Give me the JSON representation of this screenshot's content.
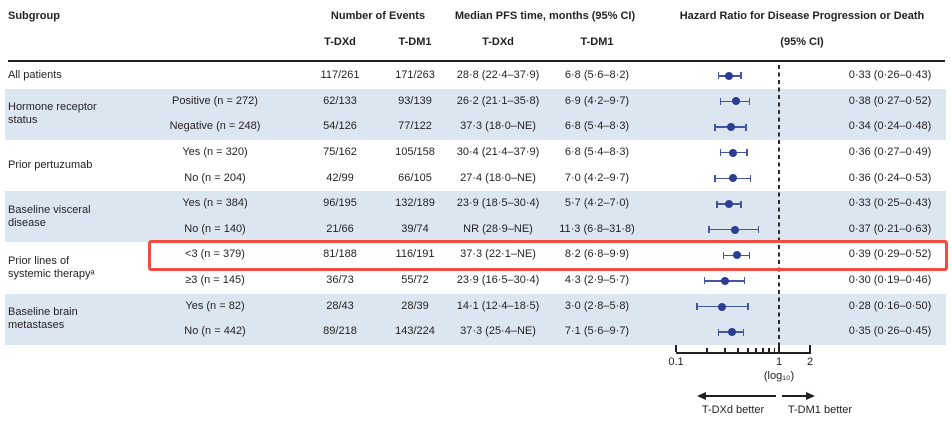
{
  "colors": {
    "band_blue": "#dce6f1",
    "marker_navy": "#2b3e92",
    "whisker_blue": "#44569f",
    "highlight_red": "#f24c42",
    "text": "#231f20"
  },
  "header": {
    "col_subgroup": "Subgroup",
    "col_events": "Number of Events",
    "col_median": "Median PFS time, months (95% CI)",
    "col_hr_line1": "Hazard Ratio for Disease Progression or Death",
    "col_hr_line2": "(95% CI)",
    "sub_tdxd": "T-DXd",
    "sub_tdm1": "T-DM1"
  },
  "groups": [
    {
      "label_lines": [
        "All patients"
      ],
      "row_start": 0,
      "row_count": 1,
      "shaded": false
    },
    {
      "label_lines": [
        "Hormone receptor",
        "status"
      ],
      "row_start": 1,
      "row_count": 2,
      "shaded": true
    },
    {
      "label_lines": [
        "Prior pertuzumab"
      ],
      "row_start": 3,
      "row_count": 2,
      "shaded": false
    },
    {
      "label_lines": [
        "Baseline visceral",
        "disease"
      ],
      "row_start": 5,
      "row_count": 2,
      "shaded": true
    },
    {
      "label_lines": [
        "Prior lines of",
        "systemic therapyᵃ"
      ],
      "row_start": 7,
      "row_count": 2,
      "shaded": false
    },
    {
      "label_lines": [
        "Baseline brain",
        "metastases"
      ],
      "row_start": 9,
      "row_count": 2,
      "shaded": true
    }
  ],
  "rows": [
    {
      "subgroup": "",
      "events_tdxd": "117/261",
      "events_tdm1": "171/263",
      "median_tdxd": "28·8 (22·4–37·9)",
      "median_tdm1": "6·8 (5·6–8·2)",
      "hr_text": "0·33 (0·26–0·43)",
      "highlighted": false
    },
    {
      "subgroup": "Positive (n = 272)",
      "events_tdxd": "62/133",
      "events_tdm1": "93/139",
      "median_tdxd": "26·2 (21·1–35·8)",
      "median_tdm1": "6·9 (4·2–9·7)",
      "hr_text": "0·38 (0·27–0·52)",
      "highlighted": false
    },
    {
      "subgroup": "Negative (n = 248)",
      "events_tdxd": "54/126",
      "events_tdm1": "77/122",
      "median_tdxd": "37·3 (18·0–NE)",
      "median_tdm1": "6·8 (5·4–8·3)",
      "hr_text": "0·34 (0·24–0·48)",
      "highlighted": false
    },
    {
      "subgroup": "Yes (n = 320)",
      "events_tdxd": "75/162",
      "events_tdm1": "105/158",
      "median_tdxd": "30·4 (21·4–37·9)",
      "median_tdm1": "6·8 (5·4–8·3)",
      "hr_text": "0·36 (0·27–0·49)",
      "highlighted": false
    },
    {
      "subgroup": "No (n = 204)",
      "events_tdxd": "42/99",
      "events_tdm1": "66/105",
      "median_tdxd": "27·4 (18·0–NE)",
      "median_tdm1": "7·0 (4·2–9·7)",
      "hr_text": "0·36 (0·24–0·53)",
      "highlighted": false
    },
    {
      "subgroup": "Yes (n = 384)",
      "events_tdxd": "96/195",
      "events_tdm1": "132/189",
      "median_tdxd": "23·9 (18·5–30·4)",
      "median_tdm1": "5·7 (4·2–7·0)",
      "hr_text": "0·33 (0·25–0·43)",
      "highlighted": false
    },
    {
      "subgroup": "No (n = 140)",
      "events_tdxd": "21/66",
      "events_tdm1": "39/74",
      "median_tdxd": "NR (28·9–NE)",
      "median_tdm1": "11·3 (6·8–31·8)",
      "hr_text": "0·37 (0·21–0·63)",
      "highlighted": false
    },
    {
      "subgroup": "<3 (n = 379)",
      "events_tdxd": "81/188",
      "events_tdm1": "116/191",
      "median_tdxd": "37·3 (22·1–NE)",
      "median_tdm1": "8·2 (6·8–9·9)",
      "hr_text": "0·39 (0·29–0·52)",
      "highlighted": true
    },
    {
      "subgroup": "≥3 (n = 145)",
      "events_tdxd": "36/73",
      "events_tdm1": "55/72",
      "median_tdxd": "23·9 (16·5–30·4)",
      "median_tdm1": "4·3 (2·9–5·7)",
      "hr_text": "0·30 (0·19–0·46)",
      "highlighted": false
    },
    {
      "subgroup": "Yes (n = 82)",
      "events_tdxd": "28/43",
      "events_tdm1": "28/39",
      "median_tdxd": "14·1 (12·4–18·5)",
      "median_tdm1": "3·0 (2·8–5·8)",
      "hr_text": "0·28 (0·16–0·50)",
      "highlighted": false
    },
    {
      "subgroup": "No (n = 442)",
      "events_tdxd": "89/218",
      "events_tdm1": "143/224",
      "median_tdxd": "37·3 (25·4–NE)",
      "median_tdm1": "7·1 (5·6–9·7)",
      "hr_text": "0·35 (0·26–0·45)",
      "highlighted": false
    }
  ],
  "chart_data": {
    "type": "scatter",
    "subtype": "forest-plot",
    "title": "",
    "x_scale": "log10",
    "xlim": [
      0.1,
      2
    ],
    "reference_line": 1,
    "x_ticks": [
      0.1,
      0.2,
      0.3,
      0.4,
      0.5,
      0.6,
      0.7,
      0.8,
      0.9,
      1,
      2
    ],
    "x_major_ticks": [
      0.1,
      1,
      2
    ],
    "x_tick_labels": [
      "0.1",
      "1",
      "2"
    ],
    "points": [
      {
        "label": "All patients",
        "hr": 0.33,
        "ci_low": 0.26,
        "ci_high": 0.43
      },
      {
        "label": "Hormone receptor status: Positive (n = 272)",
        "hr": 0.38,
        "ci_low": 0.27,
        "ci_high": 0.52
      },
      {
        "label": "Hormone receptor status: Negative (n = 248)",
        "hr": 0.34,
        "ci_low": 0.24,
        "ci_high": 0.48
      },
      {
        "label": "Prior pertuzumab: Yes (n = 320)",
        "hr": 0.36,
        "ci_low": 0.27,
        "ci_high": 0.49
      },
      {
        "label": "Prior pertuzumab: No (n = 204)",
        "hr": 0.36,
        "ci_low": 0.24,
        "ci_high": 0.53
      },
      {
        "label": "Baseline visceral disease: Yes (n = 384)",
        "hr": 0.33,
        "ci_low": 0.25,
        "ci_high": 0.43
      },
      {
        "label": "Baseline visceral disease: No (n = 140)",
        "hr": 0.37,
        "ci_low": 0.21,
        "ci_high": 0.63
      },
      {
        "label": "Prior lines of systemic therapy: <3 (n = 379)",
        "hr": 0.39,
        "ci_low": 0.29,
        "ci_high": 0.52
      },
      {
        "label": "Prior lines of systemic therapy: ≥3 (n = 145)",
        "hr": 0.3,
        "ci_low": 0.19,
        "ci_high": 0.46
      },
      {
        "label": "Baseline brain metastases: Yes (n = 82)",
        "hr": 0.28,
        "ci_low": 0.16,
        "ci_high": 0.5
      },
      {
        "label": "Baseline brain metastases: No (n = 442)",
        "hr": 0.35,
        "ci_low": 0.26,
        "ci_high": 0.45
      }
    ]
  },
  "axis": {
    "scale_label": "(log₁₀)",
    "left_arrow_label": "T-DXd better",
    "right_arrow_label": "T-DM1 better"
  }
}
